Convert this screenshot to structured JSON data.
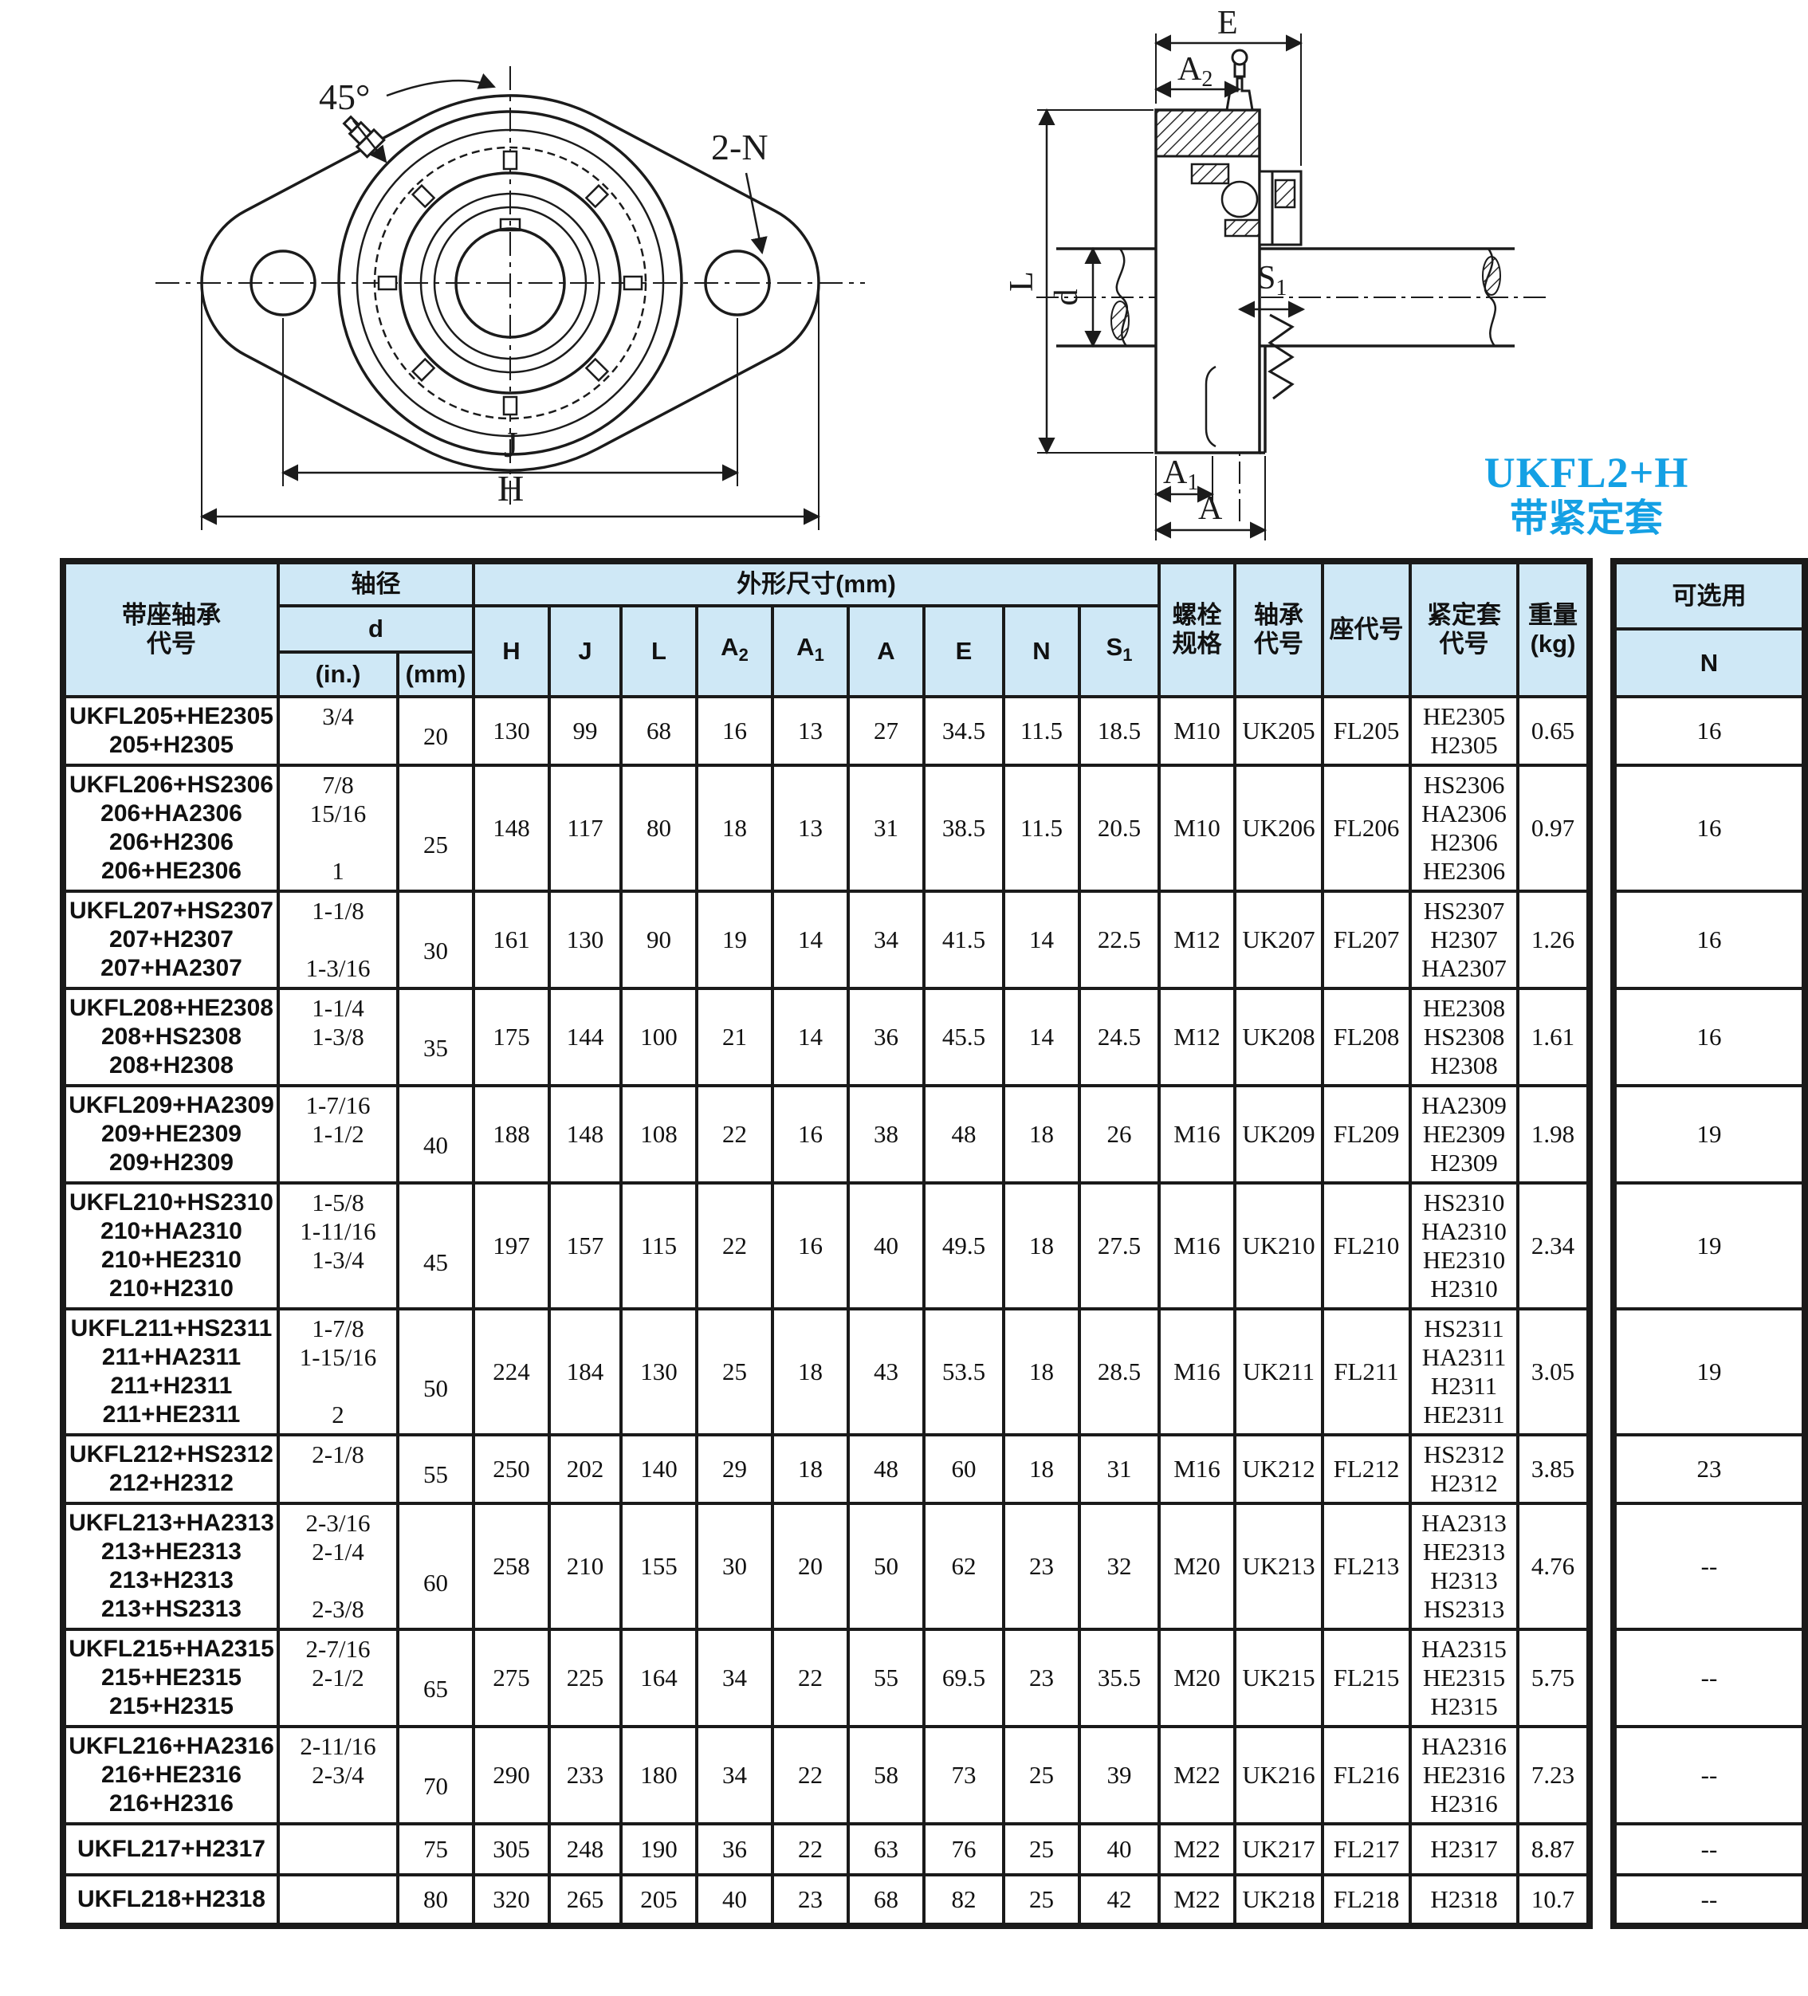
{
  "page": {
    "header_bg": "#cfe8f6",
    "accent_blue": "#14a0e4",
    "line_color": "#1a1a1a"
  },
  "caption": {
    "line1": "UKFL2+H",
    "line2": "带紧定套"
  },
  "front_view": {
    "angle_label": "45°",
    "bolt_note": "2-N",
    "dim_j": "J",
    "dim_h": "H"
  },
  "side_view": {
    "dim_e": "E",
    "dim_a2_base": "A",
    "dim_a2_sub": "2",
    "dim_l": "L",
    "dim_d": "d",
    "dim_s1_base": "S",
    "dim_s1_sub": "1",
    "dim_a1_base": "A",
    "dim_a1_sub": "1",
    "dim_a": "A"
  },
  "table": {
    "header": {
      "designation_lines": [
        "带座轴承",
        "代号"
      ],
      "shaft_dia": "轴径",
      "d": "d",
      "inch": "(in.)",
      "mm": "(mm)",
      "dims_group": "外形尺寸(mm)",
      "dim_cols": [
        {
          "b": "H",
          "s": ""
        },
        {
          "b": "J",
          "s": ""
        },
        {
          "b": "L",
          "s": ""
        },
        {
          "b": "A",
          "s": "2"
        },
        {
          "b": "A",
          "s": "1"
        },
        {
          "b": "A",
          "s": ""
        },
        {
          "b": "E",
          "s": ""
        },
        {
          "b": "N",
          "s": ""
        },
        {
          "b": "S",
          "s": "1"
        }
      ],
      "bolt_lines": [
        "螺栓",
        "规格"
      ],
      "bearing_lines": [
        "轴承",
        "代号"
      ],
      "housing_lines": [
        "座代号"
      ],
      "sleeve_lines": [
        "紧定套",
        "代号"
      ],
      "weight_lines": [
        "重量",
        "(kg)"
      ]
    },
    "rows": [
      {
        "designation": [
          "UKFL205+HE2305",
          "205+H2305"
        ],
        "inch": [
          "3/4",
          ""
        ],
        "mm": "20",
        "dims": [
          "130",
          "99",
          "68",
          "16",
          "13",
          "27",
          "34.5",
          "11.5",
          "18.5"
        ],
        "bolt": "M10",
        "bearing": "UK205",
        "housing": "FL205",
        "sleeve": [
          "HE2305",
          "H2305"
        ],
        "weight": "0.65",
        "optional_n": "16"
      },
      {
        "designation": [
          "UKFL206+HS2306",
          "206+HA2306",
          "206+H2306",
          "206+HE2306"
        ],
        "inch": [
          "7/8",
          "15/16",
          "",
          "1"
        ],
        "mm": "25",
        "dims": [
          "148",
          "117",
          "80",
          "18",
          "13",
          "31",
          "38.5",
          "11.5",
          "20.5"
        ],
        "bolt": "M10",
        "bearing": "UK206",
        "housing": "FL206",
        "sleeve": [
          "HS2306",
          "HA2306",
          "H2306",
          "HE2306"
        ],
        "weight": "0.97",
        "optional_n": "16"
      },
      {
        "designation": [
          "UKFL207+HS2307",
          "207+H2307",
          "207+HA2307"
        ],
        "inch": [
          "1-1/8",
          "",
          "1-3/16"
        ],
        "mm": "30",
        "dims": [
          "161",
          "130",
          "90",
          "19",
          "14",
          "34",
          "41.5",
          "14",
          "22.5"
        ],
        "bolt": "M12",
        "bearing": "UK207",
        "housing": "FL207",
        "sleeve": [
          "HS2307",
          "H2307",
          "HA2307"
        ],
        "weight": "1.26",
        "optional_n": "16"
      },
      {
        "designation": [
          "UKFL208+HE2308",
          "208+HS2308",
          "208+H2308"
        ],
        "inch": [
          "1-1/4",
          "1-3/8",
          ""
        ],
        "mm": "35",
        "dims": [
          "175",
          "144",
          "100",
          "21",
          "14",
          "36",
          "45.5",
          "14",
          "24.5"
        ],
        "bolt": "M12",
        "bearing": "UK208",
        "housing": "FL208",
        "sleeve": [
          "HE2308",
          "HS2308",
          "H2308"
        ],
        "weight": "1.61",
        "optional_n": "16"
      },
      {
        "designation": [
          "UKFL209+HA2309",
          "209+HE2309",
          "209+H2309"
        ],
        "inch": [
          "1-7/16",
          "1-1/2",
          ""
        ],
        "mm": "40",
        "dims": [
          "188",
          "148",
          "108",
          "22",
          "16",
          "38",
          "48",
          "18",
          "26"
        ],
        "bolt": "M16",
        "bearing": "UK209",
        "housing": "FL209",
        "sleeve": [
          "HA2309",
          "HE2309",
          "H2309"
        ],
        "weight": "1.98",
        "optional_n": "19"
      },
      {
        "designation": [
          "UKFL210+HS2310",
          "210+HA2310",
          "210+HE2310",
          "210+H2310"
        ],
        "inch": [
          "1-5/8",
          "1-11/16",
          "1-3/4",
          ""
        ],
        "mm": "45",
        "dims": [
          "197",
          "157",
          "115",
          "22",
          "16",
          "40",
          "49.5",
          "18",
          "27.5"
        ],
        "bolt": "M16",
        "bearing": "UK210",
        "housing": "FL210",
        "sleeve": [
          "HS2310",
          "HA2310",
          "HE2310",
          "H2310"
        ],
        "weight": "2.34",
        "optional_n": "19"
      },
      {
        "designation": [
          "UKFL211+HS2311",
          "211+HA2311",
          "211+H2311",
          "211+HE2311"
        ],
        "inch": [
          "1-7/8",
          "1-15/16",
          "",
          "2"
        ],
        "mm": "50",
        "dims": [
          "224",
          "184",
          "130",
          "25",
          "18",
          "43",
          "53.5",
          "18",
          "28.5"
        ],
        "bolt": "M16",
        "bearing": "UK211",
        "housing": "FL211",
        "sleeve": [
          "HS2311",
          "HA2311",
          "H2311",
          "HE2311"
        ],
        "weight": "3.05",
        "optional_n": "19"
      },
      {
        "designation": [
          "UKFL212+HS2312",
          "212+H2312"
        ],
        "inch": [
          "2-1/8",
          ""
        ],
        "mm": "55",
        "dims": [
          "250",
          "202",
          "140",
          "29",
          "18",
          "48",
          "60",
          "18",
          "31"
        ],
        "bolt": "M16",
        "bearing": "UK212",
        "housing": "FL212",
        "sleeve": [
          "HS2312",
          "H2312"
        ],
        "weight": "3.85",
        "optional_n": "23"
      },
      {
        "designation": [
          "UKFL213+HA2313",
          "213+HE2313",
          "213+H2313",
          "213+HS2313"
        ],
        "inch": [
          "2-3/16",
          "2-1/4",
          "",
          "2-3/8"
        ],
        "mm": "60",
        "dims": [
          "258",
          "210",
          "155",
          "30",
          "20",
          "50",
          "62",
          "23",
          "32"
        ],
        "bolt": "M20",
        "bearing": "UK213",
        "housing": "FL213",
        "sleeve": [
          "HA2313",
          "HE2313",
          "H2313",
          "HS2313"
        ],
        "weight": "4.76",
        "optional_n": "--"
      },
      {
        "designation": [
          "UKFL215+HA2315",
          "215+HE2315",
          "215+H2315"
        ],
        "inch": [
          "2-7/16",
          "2-1/2",
          ""
        ],
        "mm": "65",
        "dims": [
          "275",
          "225",
          "164",
          "34",
          "22",
          "55",
          "69.5",
          "23",
          "35.5"
        ],
        "bolt": "M20",
        "bearing": "UK215",
        "housing": "FL215",
        "sleeve": [
          "HA2315",
          "HE2315",
          "H2315"
        ],
        "weight": "5.75",
        "optional_n": "--"
      },
      {
        "designation": [
          "UKFL216+HA2316",
          "216+HE2316",
          "216+H2316"
        ],
        "inch": [
          "2-11/16",
          "2-3/4",
          ""
        ],
        "mm": "70",
        "dims": [
          "290",
          "233",
          "180",
          "34",
          "22",
          "58",
          "73",
          "25",
          "39"
        ],
        "bolt": "M22",
        "bearing": "UK216",
        "housing": "FL216",
        "sleeve": [
          "HA2316",
          "HE2316",
          "H2316"
        ],
        "weight": "7.23",
        "optional_n": "--"
      },
      {
        "designation": [
          "UKFL217+H2317"
        ],
        "inch": [],
        "mm": "75",
        "dims": [
          "305",
          "248",
          "190",
          "36",
          "22",
          "63",
          "76",
          "25",
          "40"
        ],
        "bolt": "M22",
        "bearing": "UK217",
        "housing": "FL217",
        "sleeve": [
          "H2317"
        ],
        "weight": "8.87",
        "optional_n": "--"
      },
      {
        "designation": [
          "UKFL218+H2318"
        ],
        "inch": [],
        "mm": "80",
        "dims": [
          "320",
          "265",
          "205",
          "40",
          "23",
          "68",
          "82",
          "25",
          "42"
        ],
        "bolt": "M22",
        "bearing": "UK218",
        "housing": "FL218",
        "sleeve": [
          "H2318"
        ],
        "weight": "10.7",
        "optional_n": "--"
      }
    ]
  },
  "optional_table": {
    "title": "可选用",
    "col": "N"
  }
}
